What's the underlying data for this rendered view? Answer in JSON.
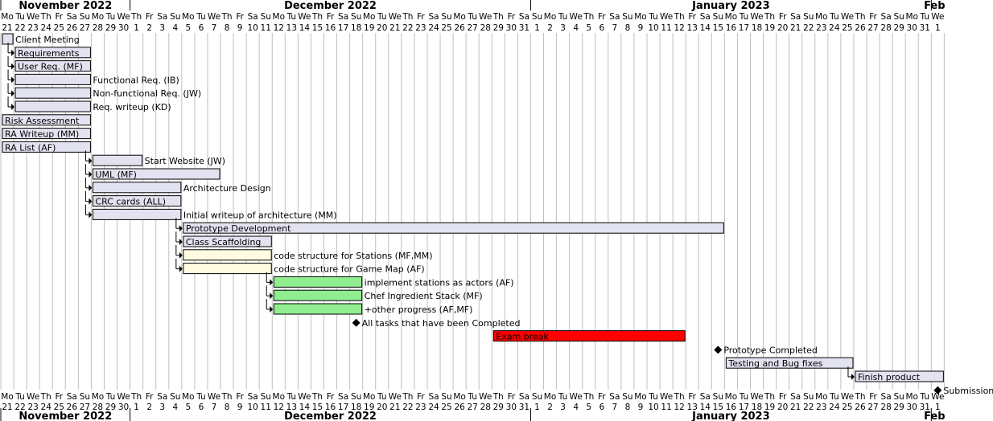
{
  "chart_data": {
    "type": "gantt",
    "start_date": "2022-11-21",
    "end_date": "2023-02-01",
    "months": [
      {
        "label": "November 2022",
        "start": "2022-11-21",
        "end": "2022-11-30"
      },
      {
        "label": "December 2022",
        "start": "2022-12-01",
        "end": "2022-12-31"
      },
      {
        "label": "January 2023",
        "start": "2023-01-01",
        "end": "2023-01-31"
      },
      {
        "label": "Feb",
        "start": "2023-02-01",
        "end": "2023-02-01"
      }
    ],
    "weekday_labels": [
      "Mo",
      "Tu",
      "We",
      "Th",
      "Fr",
      "Sa",
      "Su"
    ],
    "colors": {
      "default_fill": "#e2e2f0",
      "yellow_fill": "#fffbe0",
      "green_fill": "#90ee90",
      "red_fill": "#ff0000",
      "bar_border": "#000000",
      "grid": "#c0c0c0",
      "dependency": "#000000"
    },
    "tasks": [
      {
        "label": "Client Meeting",
        "start": "2022-11-21",
        "end": "2022-11-21",
        "label_pos": "outside"
      },
      {
        "label": "Requirements",
        "start": "2022-11-22",
        "end": "2022-11-27",
        "label_pos": "inside",
        "dep": true
      },
      {
        "label": "User Req. (MF)",
        "start": "2022-11-22",
        "end": "2022-11-27",
        "label_pos": "inside",
        "dep": true
      },
      {
        "label": "Functional Req. (IB)",
        "start": "2022-11-22",
        "end": "2022-11-27",
        "label_pos": "outside",
        "dep": true
      },
      {
        "label": "Non-functional Req. (JW)",
        "start": "2022-11-22",
        "end": "2022-11-27",
        "label_pos": "outside",
        "dep": true
      },
      {
        "label": "Req. writeup (KD)",
        "start": "2022-11-22",
        "end": "2022-11-27",
        "label_pos": "outside",
        "dep": true
      },
      {
        "label": "Risk Assessment",
        "start": "2022-11-21",
        "end": "2022-11-27",
        "label_pos": "inside"
      },
      {
        "label": "RA Writeup (MM)",
        "start": "2022-11-21",
        "end": "2022-11-27",
        "label_pos": "inside"
      },
      {
        "label": "RA List (AF)",
        "start": "2022-11-21",
        "end": "2022-11-27",
        "label_pos": "inside"
      },
      {
        "label": "Start Website (JW)",
        "start": "2022-11-28",
        "end": "2022-12-01",
        "label_pos": "outside",
        "dep": true
      },
      {
        "label": "UML (MF)",
        "start": "2022-11-28",
        "end": "2022-12-07",
        "label_pos": "inside",
        "dep": true
      },
      {
        "label": "Architecture Design",
        "start": "2022-11-28",
        "end": "2022-12-04",
        "label_pos": "outside",
        "dep": true
      },
      {
        "label": "CRC cards (ALL)",
        "start": "2022-11-28",
        "end": "2022-12-04",
        "label_pos": "inside",
        "dep": true
      },
      {
        "label": "Initial writeup of architecture (MM)",
        "start": "2022-11-28",
        "end": "2022-12-04",
        "label_pos": "outside",
        "dep": true
      },
      {
        "label": "Prototype Development",
        "start": "2022-12-05",
        "end": "2023-01-15",
        "label_pos": "inside",
        "dep": true
      },
      {
        "label": "Class Scaffolding",
        "start": "2022-12-05",
        "end": "2022-12-11",
        "label_pos": "inside",
        "dep": true
      },
      {
        "label": "code structure for Stations (MF,MM)",
        "start": "2022-12-05",
        "end": "2022-12-11",
        "label_pos": "outside",
        "dep": true,
        "fill": "yellow"
      },
      {
        "label": "code structure for Game Map (AF)",
        "start": "2022-12-05",
        "end": "2022-12-11",
        "label_pos": "outside",
        "dep": true,
        "fill": "yellow"
      },
      {
        "label": "implement stations as actors (AF)",
        "start": "2022-12-12",
        "end": "2022-12-18",
        "label_pos": "outside",
        "dep": true,
        "fill": "green"
      },
      {
        "label": "Chef Ingredient Stack (MF)",
        "start": "2022-12-12",
        "end": "2022-12-18",
        "label_pos": "outside",
        "dep": true,
        "fill": "green"
      },
      {
        "label": "+other progress (AF,MF)",
        "start": "2022-12-12",
        "end": "2022-12-18",
        "label_pos": "outside",
        "dep": true,
        "fill": "green"
      },
      {
        "label": "All tasks that have been Completed",
        "milestone": "2022-12-18"
      },
      {
        "label": "Exam break",
        "start": "2022-12-29",
        "end": "2023-01-12",
        "label_pos": "inside",
        "fill": "red"
      },
      {
        "label": "Prototype Completed",
        "milestone": "2023-01-15"
      },
      {
        "label": "Testing and Bug fixes",
        "start": "2023-01-16",
        "end": "2023-01-25",
        "label_pos": "inside"
      },
      {
        "label": "Finish product",
        "start": "2023-01-26",
        "end": "2023-02-01",
        "label_pos": "inside",
        "dep": true
      },
      {
        "label": "Submission",
        "milestone": "2023-02-01"
      }
    ]
  }
}
